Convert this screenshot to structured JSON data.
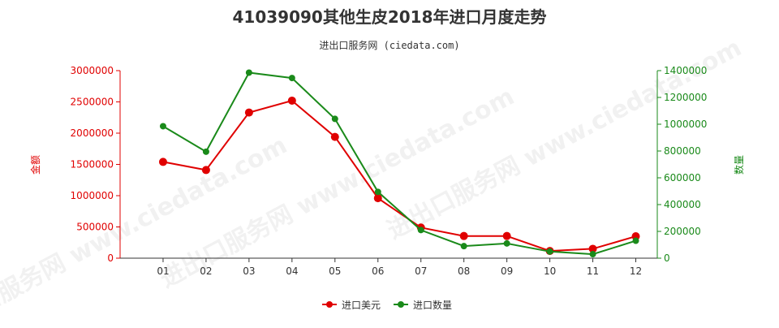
{
  "page": {
    "title": "41039090其他生皮2018年进口月度走势",
    "subtitle": "进出口服务网 (ciedata.com)",
    "watermark": "进出口服务网 www.ciedata.com"
  },
  "colors": {
    "amount": "#e00000",
    "quantity": "#1a8a1a",
    "axis": "#333333"
  },
  "chart_data": {
    "type": "line",
    "categories": [
      "01",
      "02",
      "03",
      "04",
      "05",
      "06",
      "07",
      "08",
      "09",
      "10",
      "11",
      "12"
    ],
    "series": [
      {
        "name": "进口美元",
        "axis": "left",
        "values": [
          1540000,
          1410000,
          2330000,
          2520000,
          1940000,
          960000,
          490000,
          355000,
          355000,
          115000,
          150000,
          350000
        ]
      },
      {
        "name": "进口数量",
        "axis": "right",
        "values": [
          985000,
          795000,
          1385000,
          1345000,
          1040000,
          495000,
          210000,
          90000,
          110000,
          50000,
          30000,
          130000
        ]
      }
    ],
    "ylabel_left": "金额",
    "ylabel_right": "数量",
    "ylim_left": [
      0,
      3000000
    ],
    "ylim_right": [
      0,
      1400000
    ],
    "yticks_left": [
      "0",
      "500000",
      "1000000",
      "1500000",
      "2000000",
      "2500000",
      "3000000"
    ],
    "yticks_right": [
      "0",
      "200000",
      "400000",
      "600000",
      "800000",
      "1000000",
      "1200000",
      "1400000"
    ],
    "grid": false,
    "legend_position": "bottom-center"
  }
}
